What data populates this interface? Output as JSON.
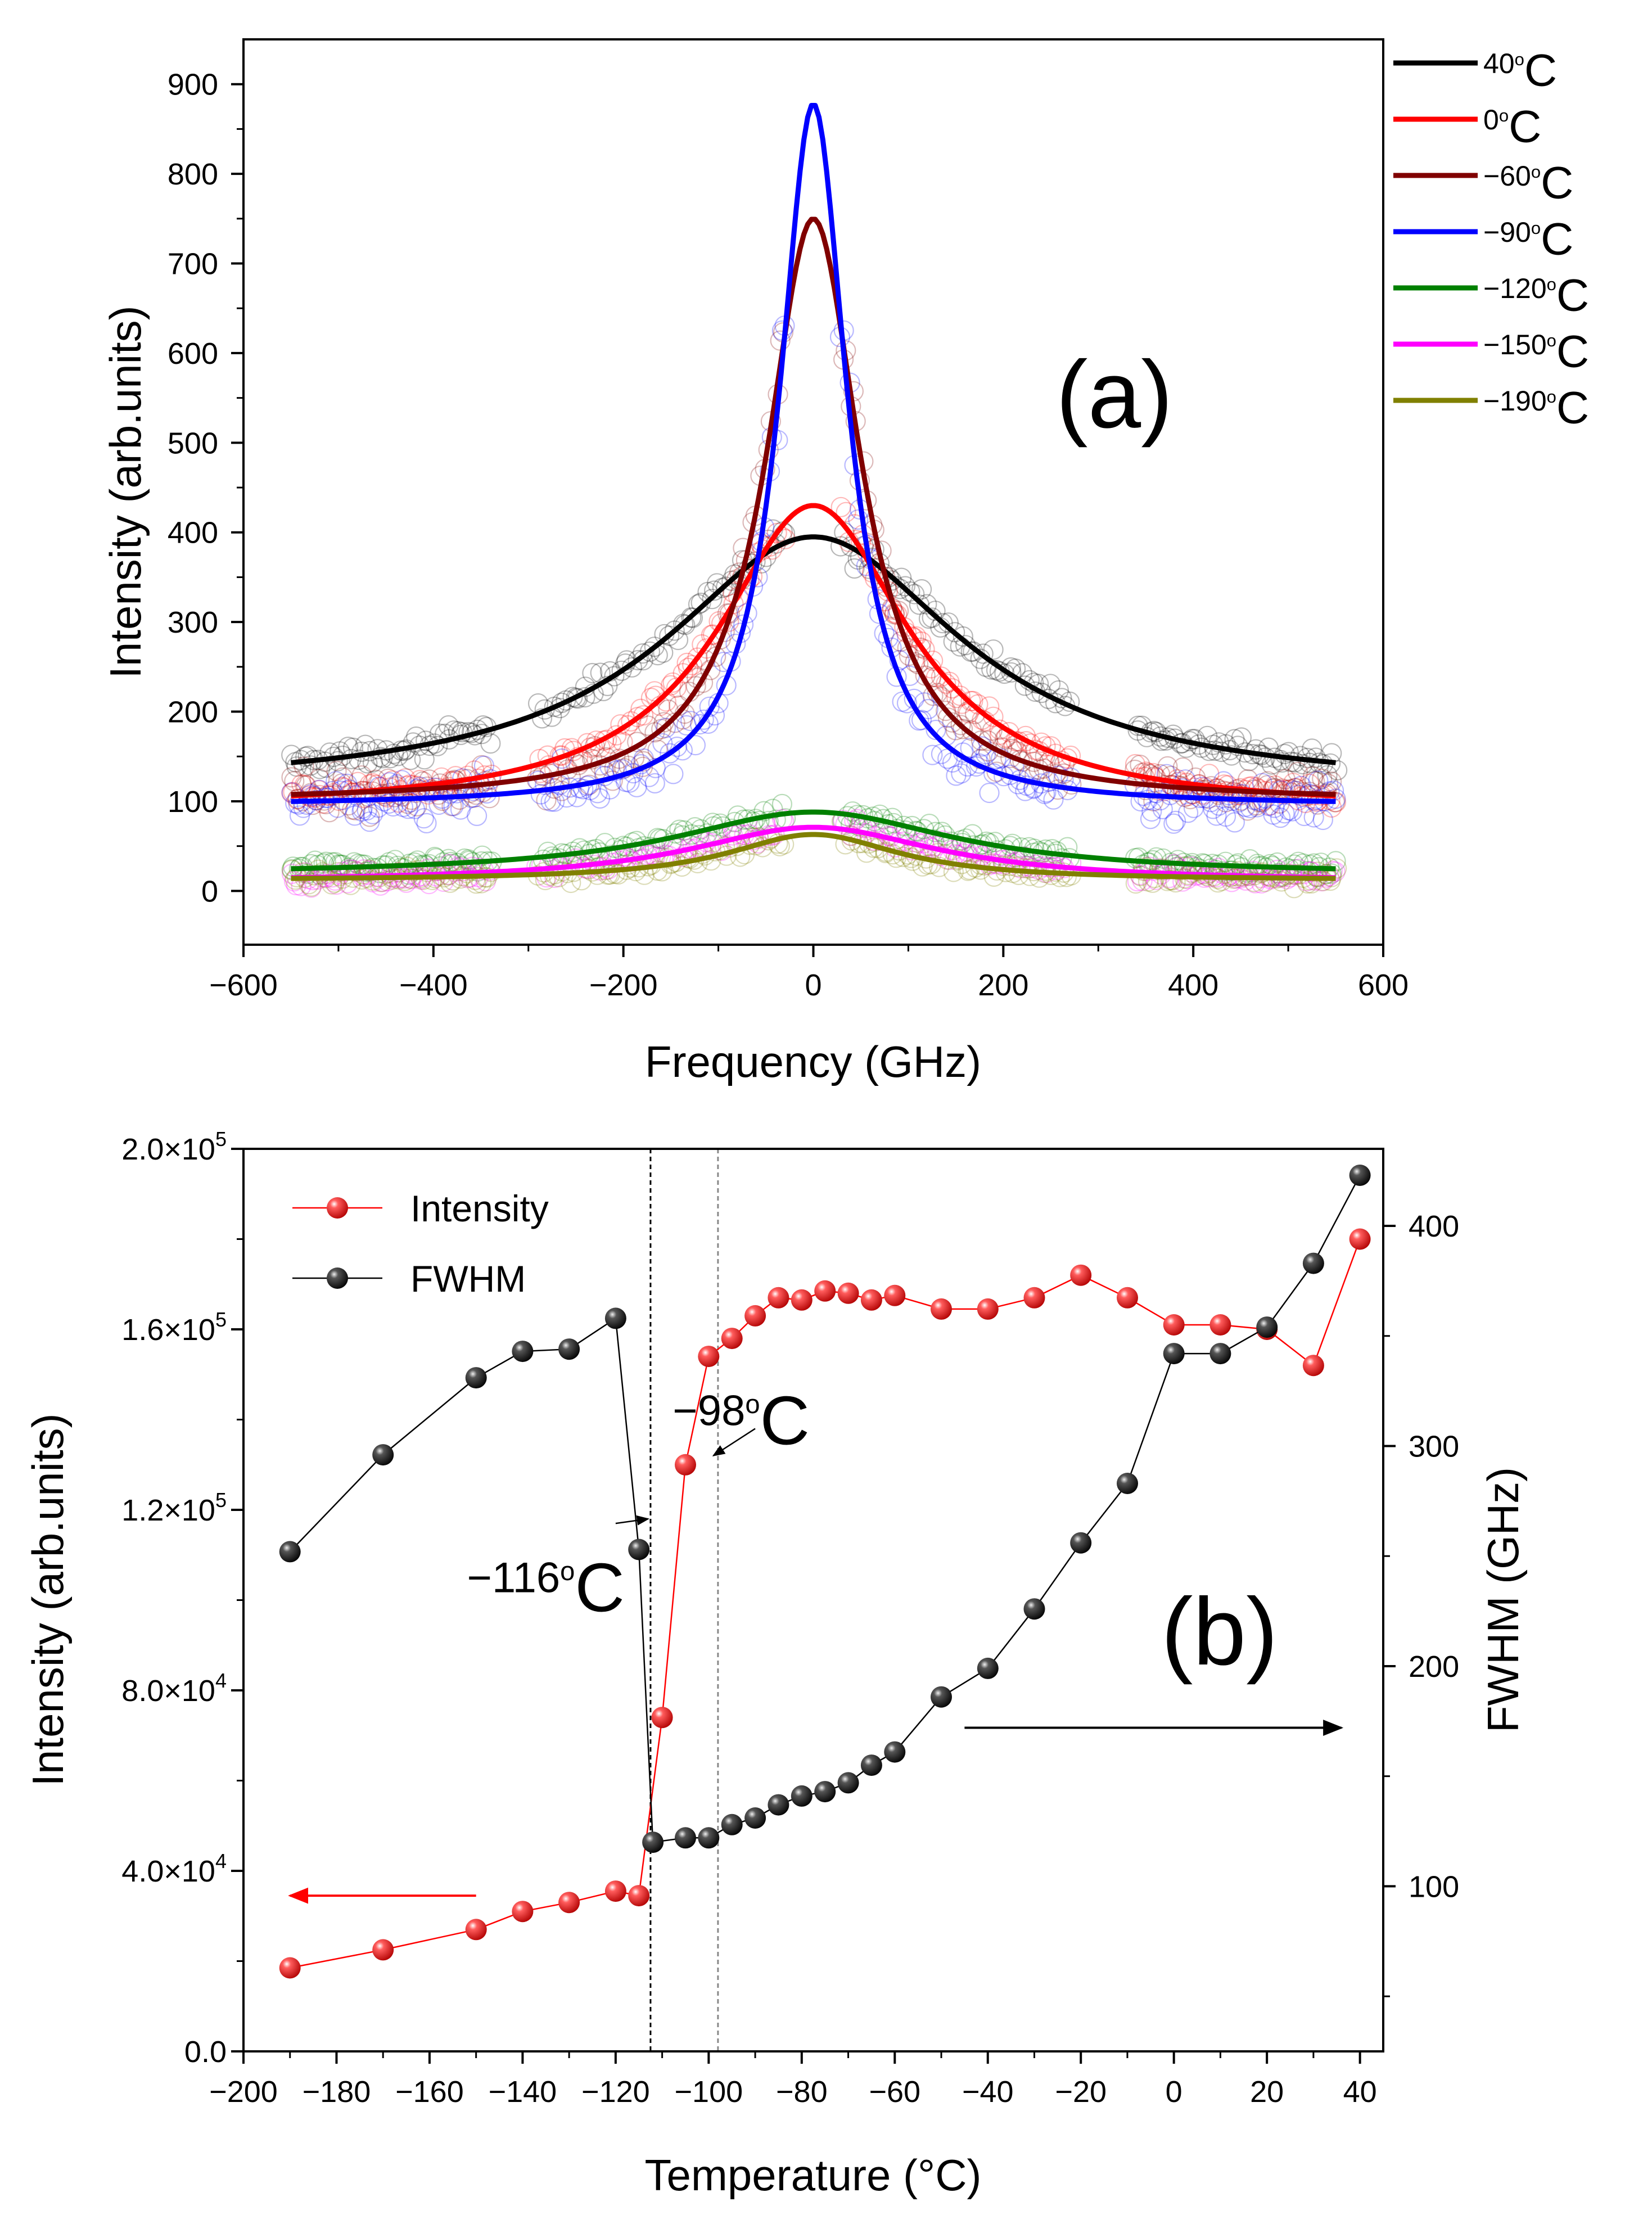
{
  "figure": {
    "background": "#ffffff"
  },
  "chart_data": [
    {
      "id": "panel-a",
      "type": "line",
      "title": "",
      "panel_label": "(a)",
      "xlabel": "Frequency (GHz)",
      "ylabel": "Intensity (arb.units)",
      "xlim": [
        -600,
        600
      ],
      "ylim": [
        -60,
        950
      ],
      "xticks": [
        -600,
        -400,
        -200,
        0,
        200,
        400,
        600
      ],
      "xtick_labels": [
        "−600",
        "−400",
        "−200",
        "0",
        "200",
        "400",
        "600"
      ],
      "yticks": [
        0,
        100,
        200,
        300,
        400,
        500,
        600,
        700,
        800,
        900
      ],
      "ytick_labels": [
        "0",
        "100",
        "200",
        "300",
        "400",
        "500",
        "600",
        "700",
        "800",
        "900"
      ],
      "legend_position": "outside-right",
      "measured_ranges": [
        [
          -550,
          -340
        ],
        [
          -290,
          -30
        ],
        [
          30,
          270
        ],
        [
          340,
          550
        ]
      ],
      "fit_range": [
        -550,
        550
      ],
      "series": [
        {
          "name": "40°C",
          "label_main": "40",
          "label_sup": "o",
          "label_tail": "C",
          "color": "#000000",
          "peak": 395,
          "background": 113,
          "hwhm": 190
        },
        {
          "name": "0°C",
          "label_main": "0",
          "label_sup": "o",
          "label_tail": "C",
          "color": "#ff0000",
          "peak": 430,
          "background": 90,
          "hwhm": 122
        },
        {
          "name": "−60°C",
          "label_main": "−60",
          "label_sup": "o",
          "label_tail": "C",
          "color": "#800000",
          "peak": 750,
          "background": 100,
          "hwhm": 60
        },
        {
          "name": "−90°C",
          "label_main": "−90",
          "label_sup": "o",
          "label_tail": "C",
          "color": "#0000ff",
          "peak": 878,
          "background": 95,
          "hwhm": 43
        },
        {
          "name": "−120°C",
          "label_main": "−120",
          "label_sup": "o",
          "label_tail": "C",
          "color": "#008000",
          "peak": 88,
          "background": 18,
          "hwhm": 180
        },
        {
          "name": "−150°C",
          "label_main": "−150",
          "label_sup": "o",
          "label_tail": "C",
          "color": "#ff00ff",
          "peak": 71,
          "background": 10,
          "hwhm": 160
        },
        {
          "name": "−190°C",
          "label_main": "−190",
          "label_sup": "o",
          "label_tail": "C",
          "color": "#808000",
          "peak": 63,
          "background": 12,
          "hwhm": 110
        }
      ]
    },
    {
      "id": "panel-b",
      "type": "scatter",
      "title": "",
      "panel_label": "(b)",
      "xlabel": "Temperature (°C)",
      "ylabel": "Intensity (arb.units)",
      "y2label": "FWHM (GHz)",
      "xlim": [
        -200,
        45
      ],
      "ylim": [
        0,
        200000
      ],
      "y2lim": [
        25,
        435
      ],
      "xticks": [
        -200,
        -180,
        -160,
        -140,
        -120,
        -100,
        -80,
        -60,
        -40,
        -20,
        0,
        20,
        40
      ],
      "xtick_labels": [
        "−200",
        "−180",
        "−160",
        "−140",
        "−120",
        "−100",
        "−80",
        "−60",
        "−40",
        "−20",
        "0",
        "20",
        "40"
      ],
      "yticks": [
        0,
        40000,
        80000,
        120000,
        160000,
        200000
      ],
      "ytick_labels": [
        {
          "main": "0.0",
          "exp": ""
        },
        {
          "main": "4.0×10",
          "exp": "4"
        },
        {
          "main": "8.0×10",
          "exp": "4"
        },
        {
          "main": "1.2×10",
          "exp": "5"
        },
        {
          "main": "1.6×10",
          "exp": "5"
        },
        {
          "main": "2.0×10",
          "exp": "5"
        }
      ],
      "y2ticks": [
        100,
        200,
        300,
        400
      ],
      "y2tick_labels": [
        "100",
        "200",
        "300",
        "400"
      ],
      "legend_position": "top-left",
      "vlines": [
        -112.5,
        -98
      ],
      "annotations": [
        {
          "name": "annot-116",
          "main": "−116",
          "sup": "o",
          "tail": "C",
          "text_x": -135,
          "text_y": 105000,
          "arrow_from": [
            -120,
            117000
          ],
          "arrow_to": [
            -113,
            118000
          ]
        },
        {
          "name": "annot-98",
          "main": "−98",
          "sup": "o",
          "tail": "C",
          "text_x": -93,
          "text_y": 142000,
          "arrow_from": [
            -90,
            138000
          ],
          "arrow_to": [
            -99,
            132000
          ]
        }
      ],
      "axis_arrows": [
        {
          "name": "arrow-to-left-axis",
          "axis": "left",
          "from": [
            -150,
            34500
          ],
          "to": [
            -190,
            34500
          ],
          "color": "#ff0000"
        },
        {
          "name": "arrow-to-right-axis",
          "axis": "right",
          "from": [
            -45,
            172
          ],
          "to": [
            36,
            172
          ],
          "color": "#000000"
        }
      ],
      "series": [
        {
          "name": "Intensity",
          "axis": "left",
          "color": "#ff0000",
          "x": [
            -190,
            -170,
            -150,
            -140,
            -130,
            -120,
            -115,
            -110,
            -105,
            -100,
            -95,
            -90,
            -85,
            -80,
            -75,
            -70,
            -65,
            -60,
            -50,
            -40,
            -30,
            -20,
            -10,
            0,
            10,
            20,
            30,
            40
          ],
          "y": [
            18500,
            22500,
            27000,
            31000,
            33000,
            35500,
            34500,
            74000,
            130000,
            154000,
            158000,
            163000,
            167000,
            166500,
            168500,
            168000,
            166500,
            167500,
            164500,
            164500,
            167000,
            172000,
            167000,
            161000,
            161000,
            160000,
            152000,
            180000
          ]
        },
        {
          "name": "FWHM",
          "axis": "right",
          "color": "#000000",
          "x": [
            -190,
            -170,
            -150,
            -140,
            -130,
            -120,
            -115,
            -112,
            -105,
            -100,
            -95,
            -90,
            -85,
            -80,
            -75,
            -70,
            -65,
            -60,
            -50,
            -40,
            -30,
            -20,
            -10,
            0,
            10,
            20,
            30,
            40
          ],
          "y": [
            252,
            296,
            331,
            343,
            344,
            358,
            253,
            120,
            122,
            122,
            128,
            131,
            137,
            141,
            143,
            147,
            155,
            161,
            186,
            199,
            226,
            256,
            283,
            342,
            342,
            354,
            383,
            423
          ]
        }
      ]
    }
  ]
}
